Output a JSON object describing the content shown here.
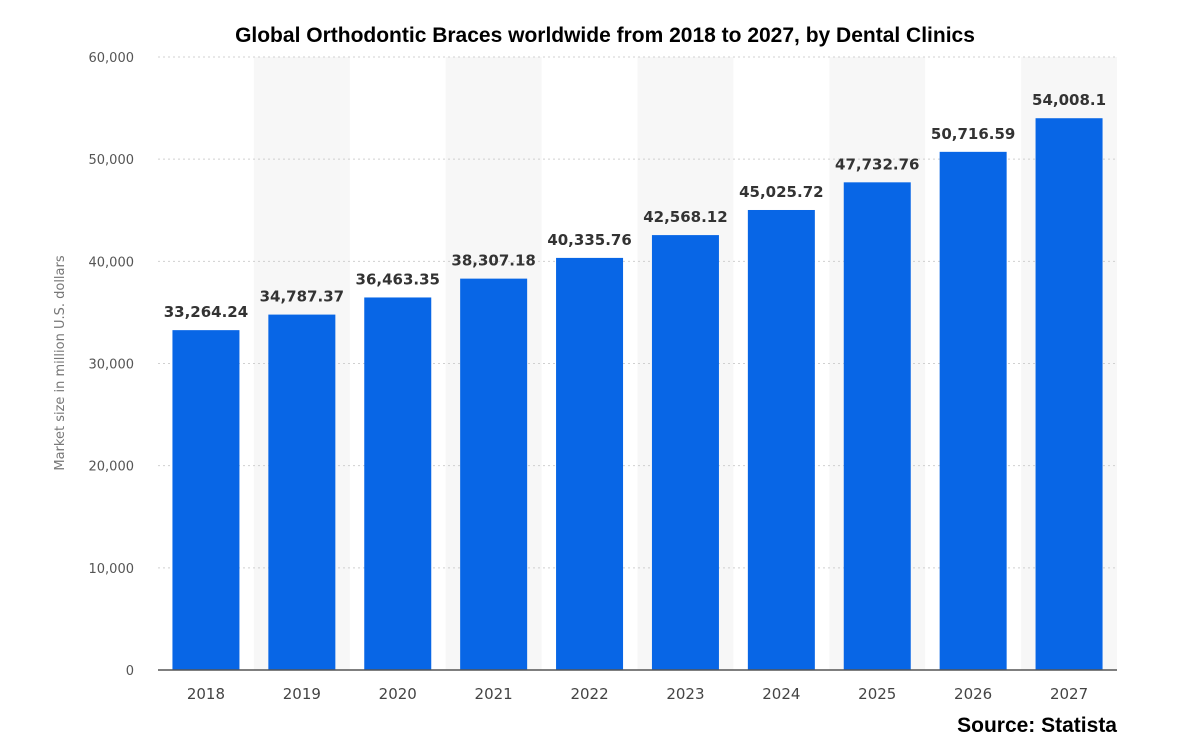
{
  "chart_data": {
    "type": "bar",
    "title": "Global Orthodontic Braces worldwide from 2018 to 2027, by Dental Clinics",
    "ylabel": "Market size in million U.S. dollars",
    "xlabel": "",
    "categories": [
      "2018",
      "2019",
      "2020",
      "2021",
      "2022",
      "2023",
      "2024",
      "2025",
      "2026",
      "2027"
    ],
    "values": [
      33264.24,
      34787.37,
      36463.35,
      38307.18,
      40335.76,
      42568.12,
      45025.72,
      47732.76,
      50716.59,
      54008.1
    ],
    "data_labels": [
      "33,264.24",
      "34,787.37",
      "36,463.35",
      "38,307.18",
      "40,335.76",
      "42,568.12",
      "45,025.72",
      "47,732.76",
      "50,716.59",
      "54,008.1"
    ],
    "yticks": [
      0,
      10000,
      20000,
      30000,
      40000,
      50000,
      60000
    ],
    "ytick_labels": [
      "0",
      "10,000",
      "20,000",
      "30,000",
      "40,000",
      "50,000",
      "60,000"
    ],
    "ylim": [
      0,
      60000
    ],
    "grid": true,
    "bar_color": "#0866e6"
  },
  "source": "Source: Statista"
}
